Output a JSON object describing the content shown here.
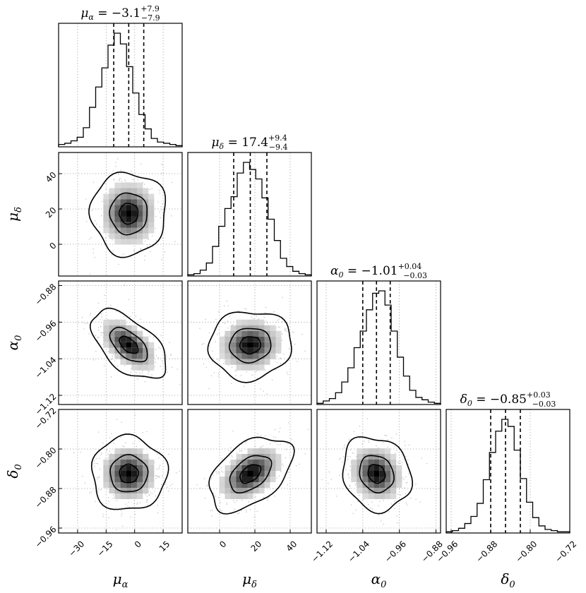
{
  "chart_data": {
    "type": "corner",
    "parameters": [
      {
        "symbol": "μα",
        "axis_label": "μ",
        "axis_sub": "α",
        "range": [
          -40,
          25
        ],
        "ticks": [
          -30,
          -15,
          0,
          15
        ],
        "median": -3.1,
        "q_lower": -11.0,
        "q_upper": 4.8,
        "title": {
          "name": "μ",
          "sub": "α",
          "eq": "= −3.1",
          "sup": "+7.9",
          "low": "−7.9"
        },
        "hist": [
          0.02,
          0.03,
          0.05,
          0.08,
          0.16,
          0.33,
          0.5,
          0.66,
          0.85,
          0.95,
          0.86,
          0.67,
          0.45,
          0.27,
          0.15,
          0.07,
          0.04,
          0.03,
          0.02,
          0.01
        ]
      },
      {
        "symbol": "μδ",
        "axis_label": "μ",
        "axis_sub": "δ",
        "range": [
          -18,
          52
        ],
        "ticks": [
          0,
          20,
          40
        ],
        "median": 17.4,
        "q_lower": 8.0,
        "q_upper": 26.8,
        "title": {
          "name": "μ",
          "sub": "δ",
          "eq": "= 17.4",
          "sup": "+9.4",
          "low": "−9.4"
        },
        "hist": [
          0.01,
          0.02,
          0.05,
          0.11,
          0.25,
          0.42,
          0.57,
          0.67,
          0.87,
          0.96,
          0.9,
          0.82,
          0.66,
          0.48,
          0.3,
          0.15,
          0.08,
          0.04,
          0.02,
          0.01
        ]
      },
      {
        "symbol": "α0",
        "axis_label": "α",
        "axis_sub": "0",
        "range": [
          -1.14,
          -0.87
        ],
        "ticks": [
          -1.12,
          -1.04,
          -0.96,
          -0.88
        ],
        "median": -1.01,
        "q_lower": -1.04,
        "q_upper": -0.98,
        "title": {
          "name": "α",
          "sub": "0",
          "eq": "= −1.01",
          "sup": "+0.04",
          "low": "−0.03"
        },
        "hist": [
          0.01,
          0.03,
          0.05,
          0.1,
          0.19,
          0.31,
          0.48,
          0.62,
          0.8,
          0.94,
          0.96,
          0.84,
          0.62,
          0.4,
          0.24,
          0.12,
          0.06,
          0.04,
          0.02,
          0.01
        ]
      },
      {
        "symbol": "δ0",
        "axis_label": "δ",
        "axis_sub": "0",
        "range": [
          -0.97,
          -0.72
        ],
        "ticks": [
          -0.96,
          -0.88,
          -0.8,
          -0.72
        ],
        "median": -0.85,
        "q_lower": -0.88,
        "q_upper": -0.82,
        "title": {
          "name": "δ",
          "sub": "0",
          "eq": "= −0.85",
          "sup": "+0.03",
          "low": "−0.03"
        },
        "hist": [
          0.01,
          0.02,
          0.04,
          0.08,
          0.14,
          0.25,
          0.45,
          0.68,
          0.86,
          0.96,
          0.9,
          0.7,
          0.46,
          0.26,
          0.13,
          0.06,
          0.03,
          0.02,
          0.01,
          0.01
        ]
      }
    ],
    "pairs": [
      {
        "x": 0,
        "y": 1,
        "correlation": 0.0
      },
      {
        "x": 0,
        "y": 2,
        "correlation": -0.55
      },
      {
        "x": 1,
        "y": 2,
        "correlation": 0.05
      },
      {
        "x": 0,
        "y": 3,
        "correlation": 0.0
      },
      {
        "x": 1,
        "y": 3,
        "correlation": 0.45
      },
      {
        "x": 2,
        "y": 3,
        "correlation": -0.15
      }
    ],
    "grid": true,
    "contour_levels_sigma": [
      0.5,
      1.0,
      2.0
    ]
  }
}
